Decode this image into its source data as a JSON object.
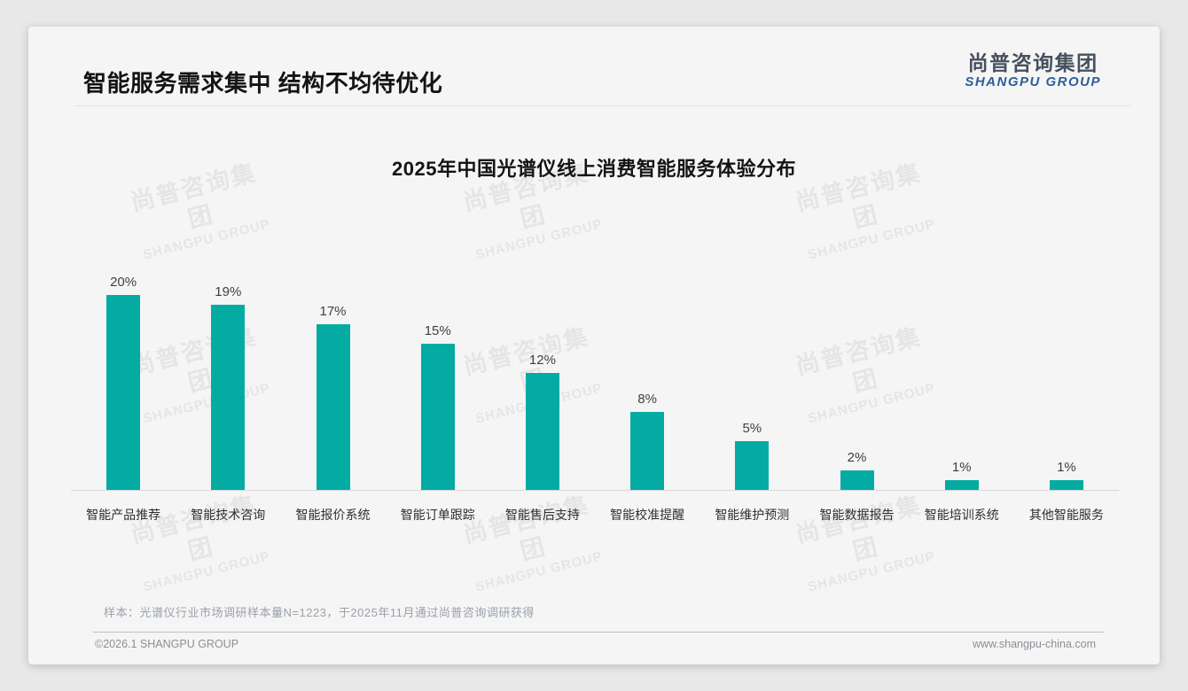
{
  "page": {
    "title": "智能服务需求集中 结构不均待优化",
    "logo": {
      "cn": "尚普咨询集团",
      "en": "SHANGPU GROUP"
    },
    "watermark": {
      "cn": "尚普咨询集团",
      "en": "SHANGPU GROUP"
    },
    "footer": {
      "note": "样本：光谱仪行业市场调研样本量N=1223，于2025年11月通过尚普咨询调研获得",
      "copyright": "©2026.1 SHANGPU GROUP",
      "website": "www.shangpu-china.com"
    }
  },
  "chart_data": {
    "type": "bar",
    "title": "2025年中国光谱仪线上消费智能服务体验分布",
    "categories": [
      "智能产品推荐",
      "智能技术咨询",
      "智能报价系统",
      "智能订单跟踪",
      "智能售后支持",
      "智能校准提醒",
      "智能维护预测",
      "智能数据报告",
      "智能培训系统",
      "其他智能服务"
    ],
    "values": [
      20,
      19,
      17,
      15,
      12,
      8,
      5,
      2,
      1,
      1
    ],
    "unit": "%",
    "value_label_position": "above-bar",
    "bar_color": "#04aba3",
    "xlabel": "",
    "ylabel": "",
    "ylim": [
      0,
      22
    ],
    "grid": false,
    "legend": "none",
    "axis_line_color": "#d8d8d8"
  }
}
